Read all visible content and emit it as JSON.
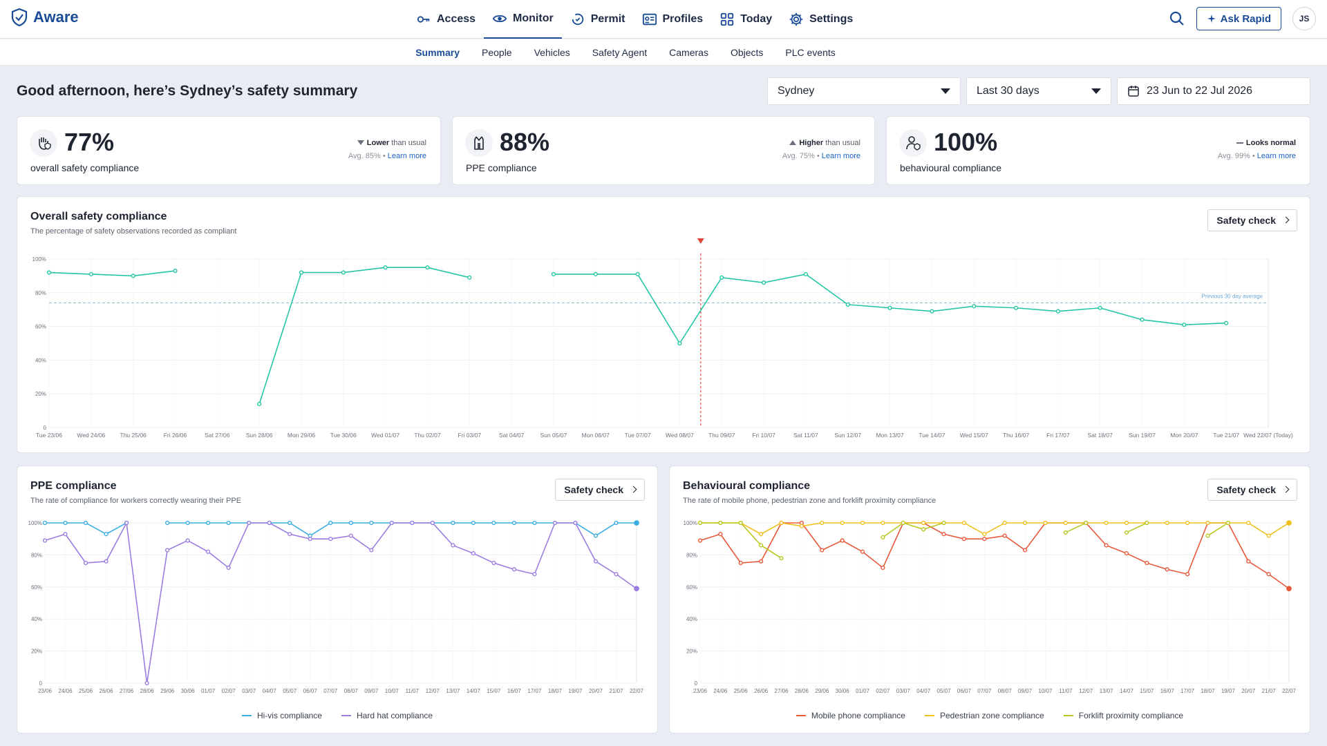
{
  "brand": {
    "name": "Aware"
  },
  "nav": [
    {
      "label": "Access",
      "icon": "key-icon"
    },
    {
      "label": "Monitor",
      "icon": "eye-icon",
      "active": true
    },
    {
      "label": "Permit",
      "icon": "permit-icon"
    },
    {
      "label": "Profiles",
      "icon": "id-card-icon"
    },
    {
      "label": "Today",
      "icon": "grid-icon"
    },
    {
      "label": "Settings",
      "icon": "gear-icon"
    }
  ],
  "top_right": {
    "ask_label": "Ask Rapid",
    "avatar_initials": "JS"
  },
  "subnav": [
    "Summary",
    "People",
    "Vehicles",
    "Safety Agent",
    "Cameras",
    "Objects",
    "PLC events"
  ],
  "subnav_active": "Summary",
  "greeting": "Good afternoon, here’s Sydney’s safety summary",
  "filters": {
    "site": "Sydney",
    "range": "Last 30 days",
    "dates": "23 Jun to 22 Jul 2026"
  },
  "kpis": [
    {
      "value": "77%",
      "label": "overall safety compliance",
      "trend_bold": "Lower",
      "trend_rest": " than usual",
      "trend_dir": "down",
      "avg": "Avg. 85%",
      "learn": "Learn more"
    },
    {
      "value": "88%",
      "label": "PPE compliance",
      "trend_bold": "Higher",
      "trend_rest": " than usual",
      "trend_dir": "up",
      "avg": "Avg. 75%",
      "learn": "Learn more"
    },
    {
      "value": "100%",
      "label": "behavioural compliance",
      "trend_bold": "Looks normal",
      "trend_rest": "",
      "trend_dir": "flat",
      "avg": "Avg. 99%",
      "learn": "Learn more"
    }
  ],
  "safety_check_label": "Safety check",
  "chart_data": [
    {
      "type": "line",
      "title": "Overall safety compliance",
      "subtitle": "The percentage of safety observations recorded as compliant",
      "categories": [
        "Tue 23/06",
        "Wed 24/06",
        "Thu 25/06",
        "Fri 26/06",
        "Sat 27/06",
        "Sun 28/06",
        "Mon 29/06",
        "Tue 30/06",
        "Wed 01/07",
        "Thu 02/07",
        "Fri 03/07",
        "Sat 04/07",
        "Sun 05/07",
        "Mon 06/07",
        "Tue 07/07",
        "Wed 08/07",
        "Thu 09/07",
        "Fri 10/07",
        "Sat 11/07",
        "Sun 12/07",
        "Mon 13/07",
        "Tue 14/07",
        "Wed 15/07",
        "Thu 16/07",
        "Fri 17/07",
        "Sat 18/07",
        "Sun 19/07",
        "Mon 20/07",
        "Tue 21/07",
        "Wed 22/07 (Today)"
      ],
      "y_ticks": [
        "0",
        "20%",
        "40%",
        "60%",
        "80%",
        "100%"
      ],
      "ylim": [
        0,
        100
      ],
      "series": [
        {
          "color": "#23c6a4",
          "values": [
            92,
            91,
            90,
            93,
            null,
            14,
            92,
            92,
            95,
            95,
            89,
            null,
            91,
            91,
            91,
            50,
            89,
            86,
            91,
            73,
            71,
            69,
            72,
            71,
            69,
            71,
            64,
            61,
            62,
            null
          ]
        }
      ],
      "average": {
        "value": 74,
        "label": "Previous 30 day average"
      },
      "marker_index": 15.5
    },
    {
      "type": "line",
      "title": "PPE compliance",
      "subtitle": "The rate of compliance for workers correctly wearing their PPE",
      "categories": [
        "23/06",
        "24/06",
        "25/06",
        "26/06",
        "27/06",
        "28/06",
        "29/06",
        "30/06",
        "01/07",
        "02/07",
        "03/07",
        "04/07",
        "05/07",
        "06/07",
        "07/07",
        "08/07",
        "09/07",
        "10/07",
        "11/07",
        "12/07",
        "13/07",
        "14/07",
        "15/07",
        "16/07",
        "17/07",
        "18/07",
        "19/07",
        "20/07",
        "21/07",
        "22/07"
      ],
      "y_ticks": [
        "0",
        "20%",
        "40%",
        "60%",
        "80%",
        "100%"
      ],
      "ylim": [
        0,
        100
      ],
      "series": [
        {
          "name": "Hi-vis compliance",
          "color": "#3aaee0",
          "values": [
            100,
            100,
            100,
            93,
            100,
            null,
            100,
            100,
            100,
            100,
            100,
            100,
            100,
            92,
            100,
            100,
            100,
            100,
            100,
            100,
            100,
            100,
            100,
            100,
            100,
            100,
            100,
            92,
            100,
            100
          ]
        },
        {
          "name": "Hard hat compliance",
          "color": "#9b7de0",
          "values": [
            89,
            93,
            75,
            76,
            100,
            0,
            83,
            89,
            82,
            72,
            100,
            100,
            93,
            90,
            90,
            92,
            83,
            100,
            100,
            100,
            86,
            81,
            75,
            71,
            68,
            100,
            100,
            76,
            68,
            59
          ]
        }
      ]
    },
    {
      "type": "line",
      "title": "Behavioural compliance",
      "subtitle": "The rate of mobile phone, pedestrian zone and forklift proximity compliance",
      "categories": [
        "23/06",
        "24/06",
        "25/06",
        "26/06",
        "27/06",
        "28/06",
        "29/06",
        "30/06",
        "01/07",
        "02/07",
        "03/07",
        "04/07",
        "05/07",
        "06/07",
        "07/07",
        "08/07",
        "09/07",
        "10/07",
        "11/07",
        "12/07",
        "13/07",
        "14/07",
        "15/07",
        "16/07",
        "17/07",
        "18/07",
        "19/07",
        "20/07",
        "21/07",
        "22/07"
      ],
      "y_ticks": [
        "0",
        "20%",
        "40%",
        "60%",
        "80%",
        "100%"
      ],
      "ylim": [
        0,
        100
      ],
      "series": [
        {
          "name": "Mobile phone compliance",
          "color": "#e8583a",
          "values": [
            89,
            93,
            75,
            76,
            100,
            100,
            83,
            89,
            82,
            72,
            100,
            100,
            93,
            90,
            90,
            92,
            83,
            100,
            100,
            100,
            86,
            81,
            75,
            71,
            68,
            100,
            100,
            76,
            68,
            59
          ]
        },
        {
          "name": "Pedestrian zone compliance",
          "color": "#f0c020",
          "values": [
            100,
            100,
            100,
            93,
            100,
            98,
            100,
            100,
            100,
            100,
            100,
            100,
            100,
            100,
            93,
            100,
            100,
            100,
            100,
            100,
            100,
            100,
            100,
            100,
            100,
            100,
            100,
            100,
            92,
            100
          ]
        },
        {
          "name": "Forklift proximity compliance",
          "color": "#b8c820",
          "values": [
            100,
            100,
            100,
            86,
            78,
            null,
            null,
            null,
            null,
            91,
            100,
            96,
            100,
            null,
            null,
            null,
            null,
            null,
            94,
            100,
            null,
            94,
            100,
            null,
            null,
            92,
            100,
            null,
            null,
            null
          ]
        }
      ]
    }
  ]
}
